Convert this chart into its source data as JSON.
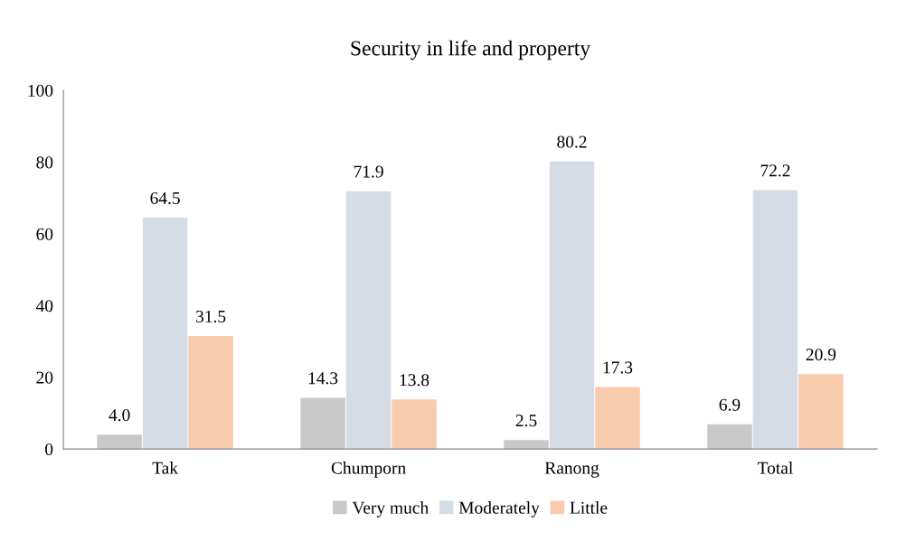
{
  "chart_data": {
    "type": "bar",
    "title": "Security in life and property",
    "categories": [
      "Tak",
      "Chumporn",
      "Ranong",
      "Total"
    ],
    "series": [
      {
        "name": "Very much",
        "color": "#c9c9c9",
        "values": [
          4.0,
          14.3,
          2.5,
          6.9
        ],
        "value_labels": [
          "4.0",
          "14.3",
          "2.5",
          "6.9"
        ]
      },
      {
        "name": "Moderately",
        "color": "#d6dce5",
        "values": [
          64.5,
          71.9,
          80.2,
          72.2
        ],
        "value_labels": [
          "64.5",
          "71.9",
          "80.2",
          "72.2"
        ]
      },
      {
        "name": "Little",
        "color": "#f8cbad",
        "values": [
          31.5,
          13.8,
          17.3,
          20.9
        ],
        "value_labels": [
          "31.5",
          "13.8",
          "17.3",
          "20.9"
        ]
      }
    ],
    "ylim": [
      0,
      100
    ],
    "yticks": [
      0,
      20,
      40,
      60,
      80,
      100
    ],
    "grid": false,
    "legend": "bottom"
  }
}
